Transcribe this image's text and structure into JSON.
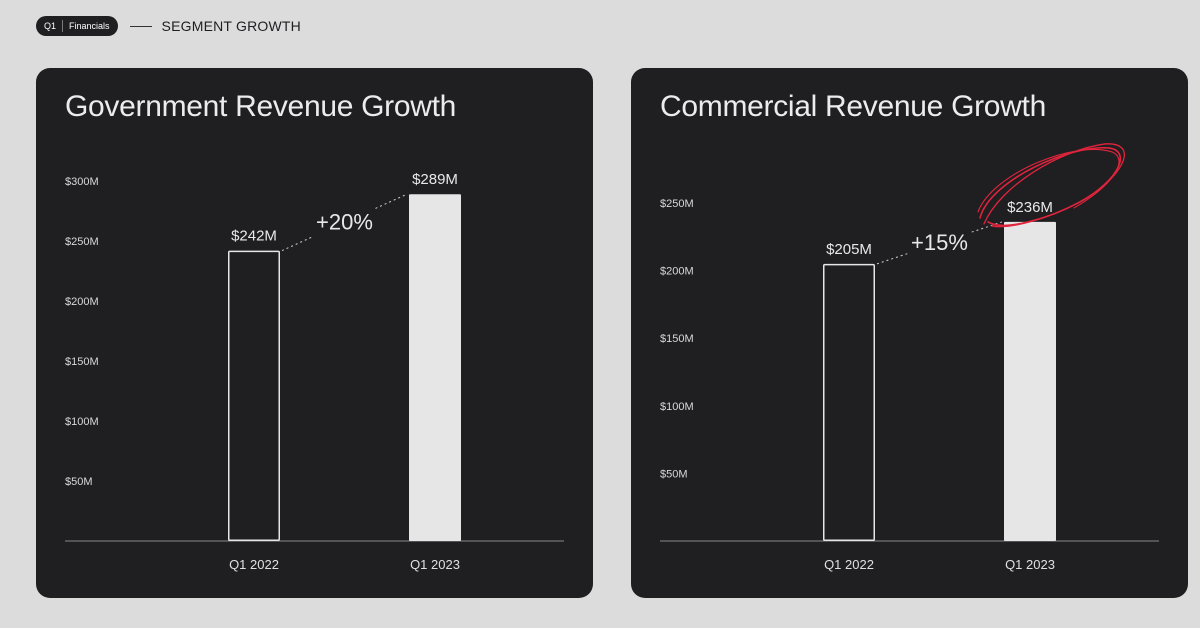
{
  "header": {
    "tag_left": "Q1",
    "tag_right": "Financials",
    "title": "SEGMENT GROWTH"
  },
  "colors": {
    "page_bg": "#dcdcdc",
    "card_bg": "#1f1f22",
    "bar_fill": "#e6e6e6",
    "bar_outline": "#e6e6e6",
    "annotation": "#e0243c"
  },
  "chart_data": [
    {
      "type": "bar",
      "title": "Government Revenue Growth",
      "categories": [
        "Q1 2022",
        "Q1 2023"
      ],
      "values": [
        242,
        289
      ],
      "value_labels": [
        "$242M",
        "$289M"
      ],
      "growth_label": "+20%",
      "yticks": [
        "$50M",
        "$100M",
        "$150M",
        "$200M",
        "$250M",
        "$300M"
      ],
      "ytick_values": [
        50,
        100,
        150,
        200,
        250,
        300
      ],
      "ylim": [
        0,
        300
      ],
      "xlabel": "",
      "ylabel": "",
      "grid": false,
      "legend": "none",
      "bar_styles": [
        "outline",
        "filled"
      ],
      "highlight": false
    },
    {
      "type": "bar",
      "title": "Commercial Revenue Growth",
      "categories": [
        "Q1 2022",
        "Q1 2023"
      ],
      "values": [
        205,
        236
      ],
      "value_labels": [
        "$205M",
        "$236M"
      ],
      "growth_label": "+15%",
      "yticks": [
        "$50M",
        "$100M",
        "$150M",
        "$200M",
        "$250M"
      ],
      "ytick_values": [
        50,
        100,
        150,
        200,
        250
      ],
      "ylim": [
        0,
        250
      ],
      "xlabel": "",
      "ylabel": "",
      "grid": false,
      "legend": "none",
      "bar_styles": [
        "outline",
        "filled"
      ],
      "highlight": true
    }
  ]
}
